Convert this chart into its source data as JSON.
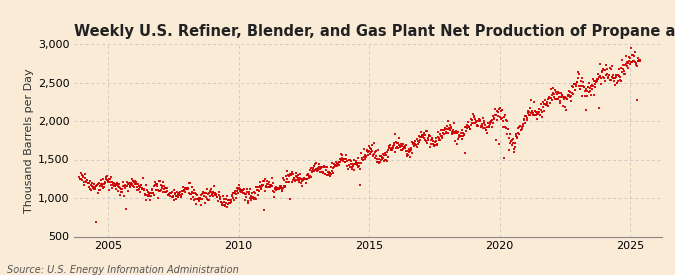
{
  "title": "Weekly U.S. Refiner, Blender, and Gas Plant Net Production of Propane and Propylene",
  "ylabel": "Thousand Barrels per Day",
  "source": "Source: U.S. Energy Information Administration",
  "dot_color": "#cc0000",
  "background_color": "#faebd7",
  "grid_color": "#bbbbbb",
  "ylim": [
    500,
    3000
  ],
  "yticks": [
    500,
    1000,
    1500,
    2000,
    2500,
    3000
  ],
  "ytick_labels": [
    "500",
    "1,000",
    "1,500",
    "2,000",
    "2,500",
    "3,000"
  ],
  "xlim_start": 2003.7,
  "xlim_end": 2026.2,
  "xticks": [
    2005,
    2010,
    2015,
    2020,
    2025
  ],
  "seed": 42,
  "title_fontsize": 10.5,
  "label_fontsize": 8,
  "tick_fontsize": 8,
  "source_fontsize": 7
}
